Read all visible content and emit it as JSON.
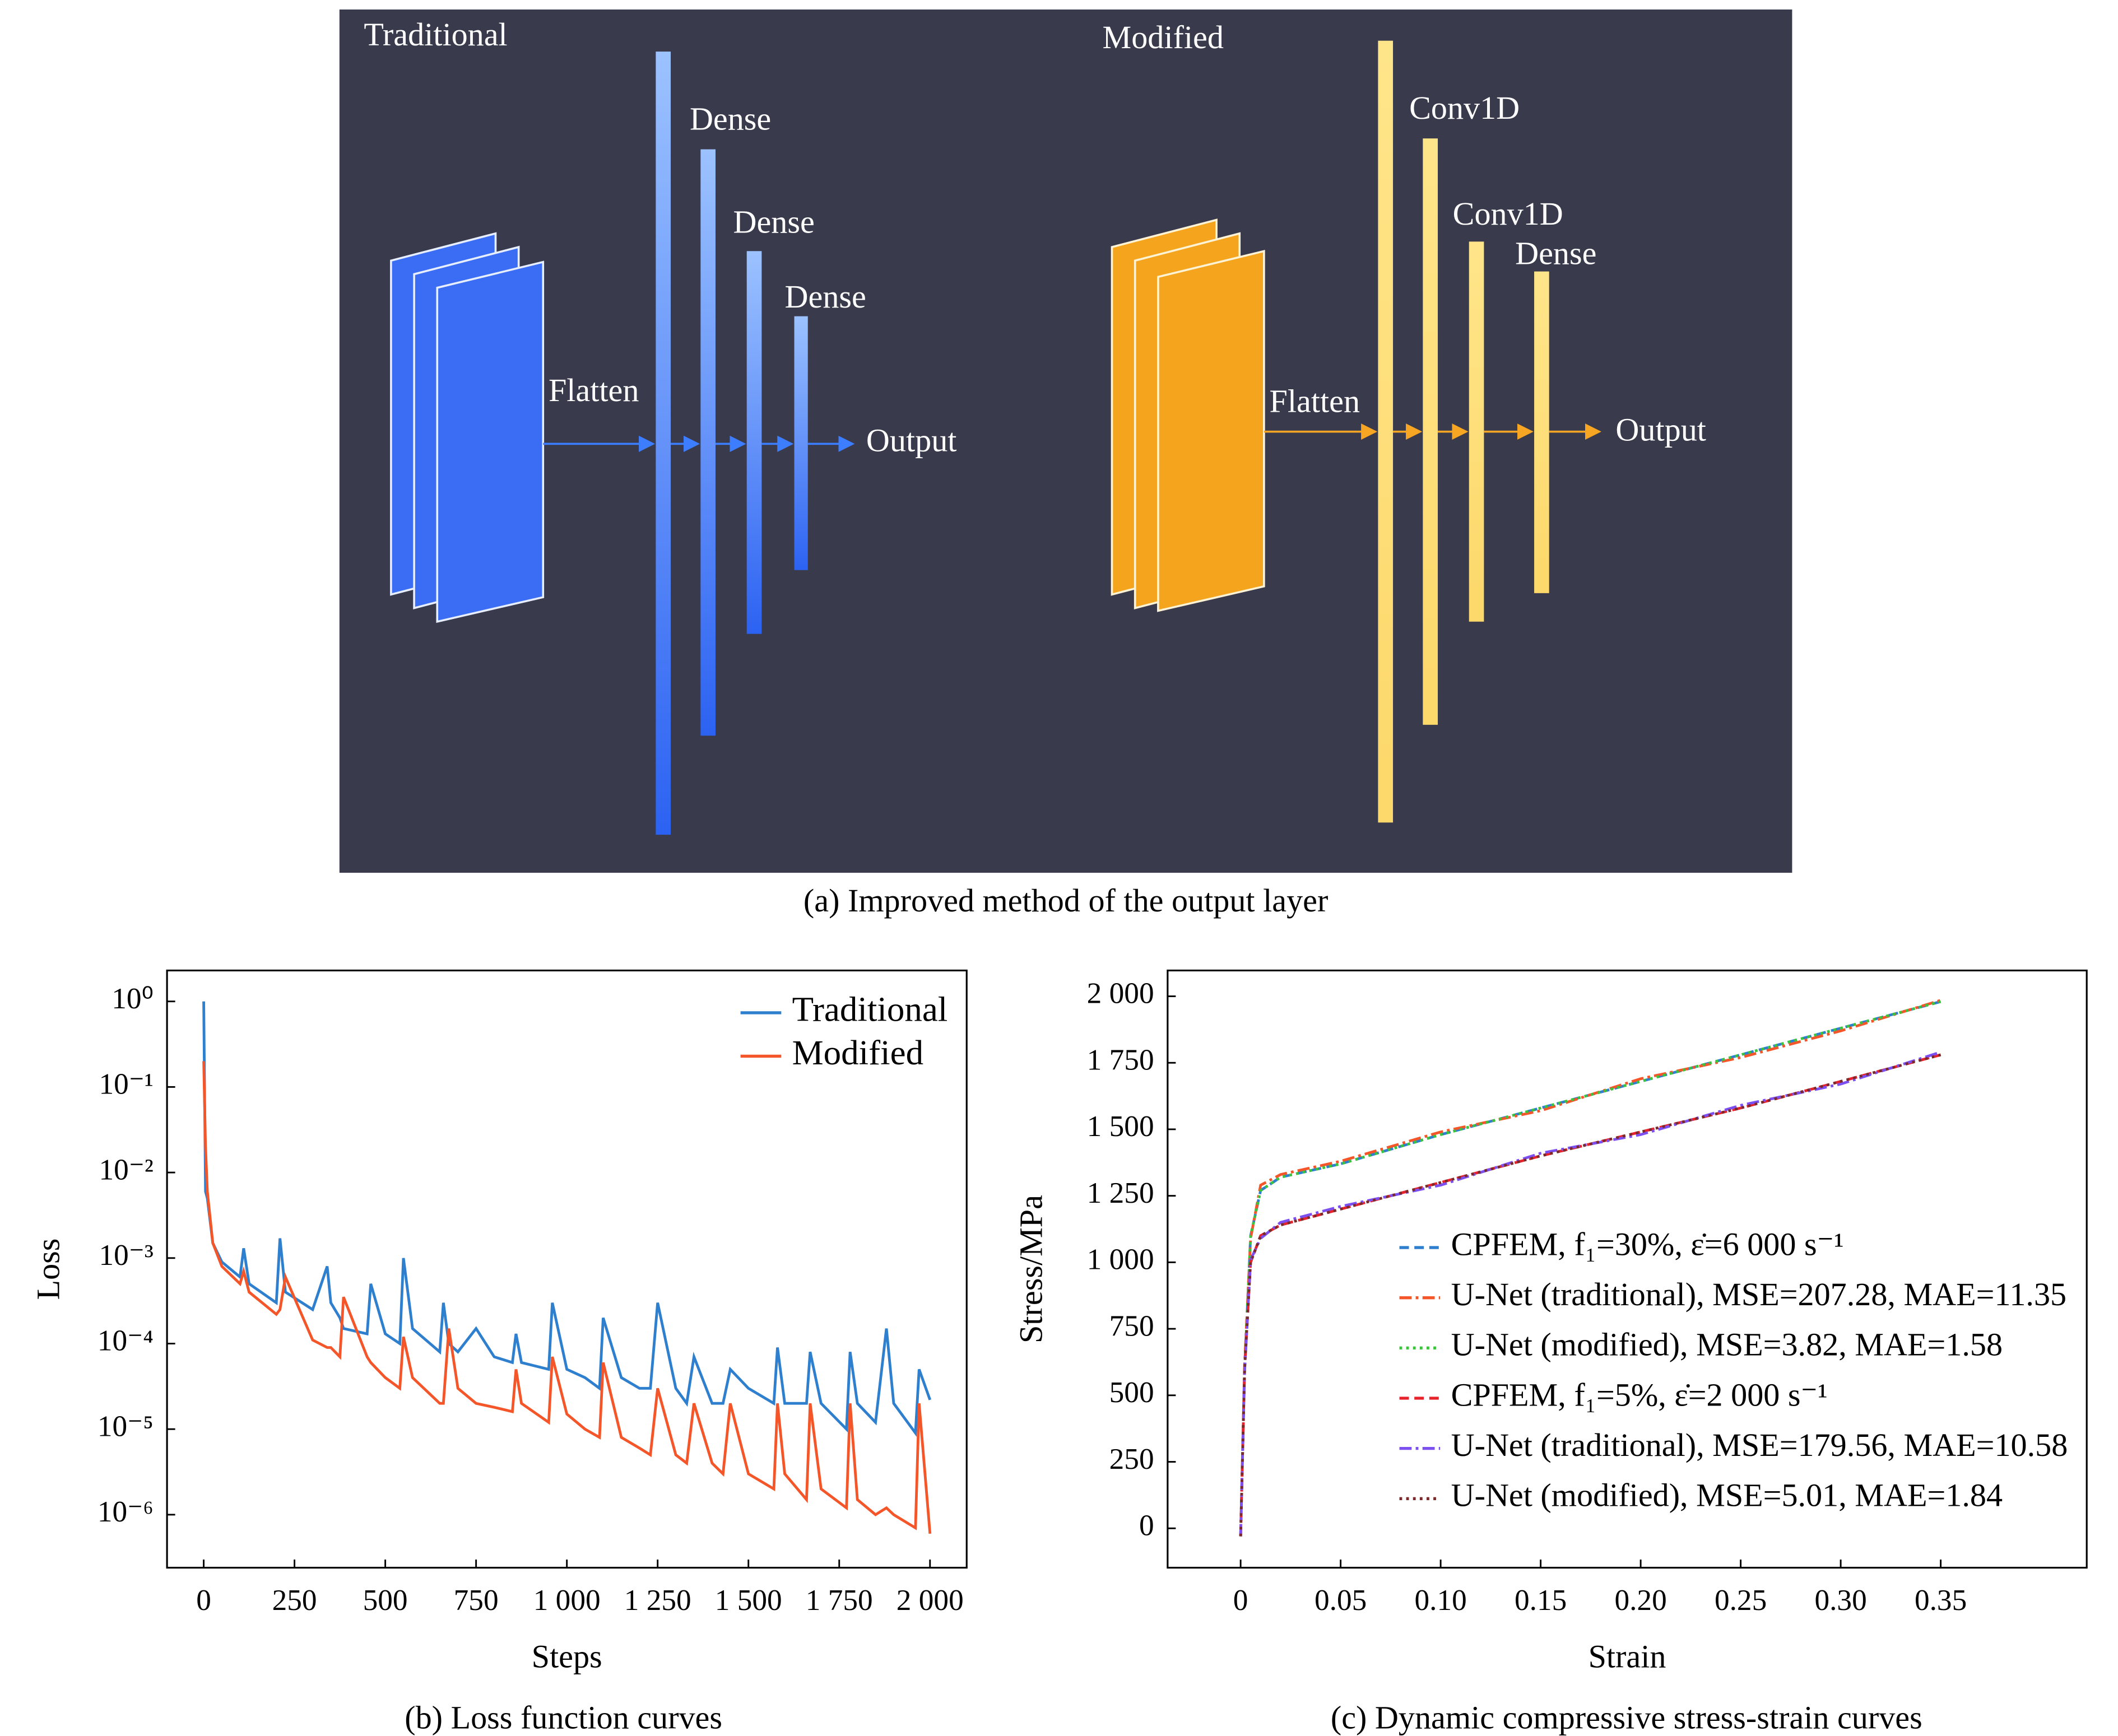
{
  "diagram": {
    "left": {
      "title": "Traditional",
      "flatten": "Flatten",
      "layers": [
        "Dense",
        "Dense",
        "Dense"
      ],
      "output": "Output"
    },
    "right": {
      "title": "Modified",
      "flatten": "Flatten",
      "layers": [
        "Conv1D",
        "Conv1D",
        "Dense"
      ],
      "output": "Output"
    },
    "caption": "(a) Improved method of the output layer"
  },
  "chart_data": [
    {
      "type": "line",
      "caption": "(b) Loss function curves",
      "xlabel": "Steps",
      "ylabel": "Loss",
      "yscale": "log",
      "legend": "upper right",
      "x": [
        0,
        5,
        10,
        25,
        50,
        100,
        110,
        125,
        200,
        210,
        225,
        300,
        340,
        350,
        375,
        385,
        450,
        460,
        500,
        540,
        550,
        575,
        650,
        660,
        675,
        700,
        750,
        800,
        850,
        860,
        875,
        950,
        960,
        1000,
        1050,
        1090,
        1100,
        1150,
        1200,
        1230,
        1250,
        1300,
        1330,
        1350,
        1400,
        1430,
        1450,
        1500,
        1570,
        1580,
        1600,
        1660,
        1670,
        1700,
        1770,
        1780,
        1800,
        1850,
        1880,
        1900,
        1960,
        1970,
        2000
      ],
      "series": [
        {
          "name": "Traditional",
          "color": "#2f7fcf",
          "dash": "solid",
          "values": [
            1.0,
            0.006,
            0.005,
            0.0015,
            0.0009,
            0.0006,
            0.0013,
            0.0005,
            0.0003,
            0.0017,
            0.0004,
            0.00025,
            0.0008,
            0.0003,
            0.0002,
            0.00015,
            0.00013,
            0.0005,
            0.00013,
            0.0001,
            0.001,
            0.00015,
            8e-05,
            0.0003,
            0.0001,
            8e-05,
            0.00015,
            7e-05,
            6e-05,
            0.00013,
            6e-05,
            5e-05,
            0.0003,
            5e-05,
            4e-05,
            3e-05,
            0.0002,
            4e-05,
            3e-05,
            3e-05,
            0.0003,
            3e-05,
            2e-05,
            7e-05,
            2e-05,
            2e-05,
            5e-05,
            3e-05,
            2e-05,
            9e-05,
            2e-05,
            2e-05,
            8e-05,
            2e-05,
            1e-05,
            8e-05,
            2e-05,
            1.2e-05,
            0.00015,
            2e-05,
            9e-06,
            5e-05,
            2.2e-05
          ]
        },
        {
          "name": "Modified",
          "color": "#f4562a",
          "dash": "solid",
          "values": [
            0.2,
            0.02,
            0.006,
            0.0015,
            0.0008,
            0.0005,
            0.0007,
            0.0004,
            0.00022,
            0.00025,
            0.0006,
            0.00011,
            9e-05,
            9e-05,
            7e-05,
            0.00035,
            7e-05,
            6e-05,
            4e-05,
            3e-05,
            0.00012,
            4e-05,
            2e-05,
            2e-05,
            0.00015,
            3e-05,
            2e-05,
            1.8e-05,
            1.6e-05,
            5e-05,
            2e-05,
            1.2e-05,
            7e-05,
            1.5e-05,
            1e-05,
            8e-06,
            6e-05,
            8e-06,
            6e-06,
            5e-06,
            3e-05,
            5e-06,
            4e-06,
            2e-05,
            4e-06,
            3e-06,
            2e-05,
            3e-06,
            2e-06,
            2e-05,
            3e-06,
            1.5e-06,
            2e-05,
            2e-06,
            1.2e-06,
            2e-05,
            1.5e-06,
            1e-06,
            1.2e-06,
            1e-06,
            7e-07,
            2e-05,
            6e-07
          ]
        }
      ],
      "xlim": [
        -101,
        2101
      ],
      "ylim": [
        2.4e-07,
        2.3
      ],
      "xticks": [
        0,
        250,
        500,
        750,
        {
          "value": 1000,
          "label": "1 000"
        },
        {
          "value": 1250,
          "label": "1 250"
        },
        {
          "value": 1500,
          "label": "1 500"
        },
        {
          "value": 1750,
          "label": "1 750"
        },
        {
          "value": 2000,
          "label": "2 000"
        }
      ],
      "yticks": [
        {
          "value": 1,
          "label": "10⁰"
        },
        {
          "value": 0.1,
          "label": "10⁻¹"
        },
        {
          "value": 0.01,
          "label": "10⁻²"
        },
        {
          "value": 0.001,
          "label": "10⁻³"
        },
        {
          "value": 0.0001,
          "label": "10⁻⁴"
        },
        {
          "value": 1e-05,
          "label": "10⁻⁵"
        },
        {
          "value": 1e-06,
          "label": "10⁻⁶"
        }
      ]
    },
    {
      "type": "line",
      "caption": "(c) Dynamic compressive stress-strain curves",
      "xlabel": "Strain",
      "ylabel": "Stress/MPa",
      "yscale": "linear",
      "legend": "lower right",
      "x": [
        0,
        0.002,
        0.005,
        0.01,
        0.02,
        0.05,
        0.1,
        0.15,
        0.2,
        0.25,
        0.3,
        0.35
      ],
      "series": [
        {
          "name": "CPFEM, f₁=30%, ε̇=6 000 s⁻¹",
          "color": "#2f7fcf",
          "dash": "dash",
          "values": [
            -30,
            600,
            1100,
            1270,
            1320,
            1370,
            1480,
            1580,
            1680,
            1780,
            1880,
            1980
          ]
        },
        {
          "name": "U-Net (traditional), MSE=207.28, MAE=11.35",
          "color": "#f4562a",
          "dash": "dashdot",
          "values": [
            -30,
            620,
            1090,
            1290,
            1330,
            1380,
            1490,
            1570,
            1690,
            1770,
            1870,
            1985
          ]
        },
        {
          "name": "U-Net (modified), MSE=3.82, MAE=1.58",
          "color": "#3cc43c",
          "dash": "dot",
          "values": [
            -30,
            600,
            1100,
            1270,
            1320,
            1370,
            1480,
            1580,
            1680,
            1780,
            1880,
            1980
          ]
        },
        {
          "name": "CPFEM, f₁=5%, ε̇=2 000 s⁻¹",
          "color": "#e8222a",
          "dash": "dash",
          "values": [
            -30,
            600,
            1000,
            1100,
            1140,
            1200,
            1300,
            1400,
            1490,
            1580,
            1680,
            1780
          ]
        },
        {
          "name": "U-Net (traditional), MSE=179.56, MAE=10.58",
          "color": "#7b4ff0",
          "dash": "dashdot",
          "values": [
            -30,
            590,
            1010,
            1090,
            1150,
            1210,
            1290,
            1410,
            1480,
            1590,
            1670,
            1790
          ]
        },
        {
          "name": "U-Net (modified), MSE=5.01, MAE=1.84",
          "color": "#7a2a2a",
          "dash": "dot",
          "values": [
            -30,
            600,
            1000,
            1100,
            1140,
            1200,
            1300,
            1400,
            1490,
            1580,
            1680,
            1780
          ]
        }
      ],
      "xlim": [
        -0.0365,
        0.423
      ],
      "ylim": [
        -148,
        2097
      ],
      "xticks": [
        0,
        0.05,
        {
          "value": 0.1,
          "label": "0.10"
        },
        0.15,
        {
          "value": 0.2,
          "label": "0.20"
        },
        0.25,
        {
          "value": 0.3,
          "label": "0.30"
        },
        0.35
      ],
      "yticks": [
        0,
        250,
        500,
        750,
        {
          "value": 1000,
          "label": "1 000"
        },
        {
          "value": 1250,
          "label": "1 250"
        },
        {
          "value": 1500,
          "label": "1 500"
        },
        {
          "value": 1750,
          "label": "1 750"
        },
        {
          "value": 2000,
          "label": "2 000"
        }
      ]
    }
  ]
}
